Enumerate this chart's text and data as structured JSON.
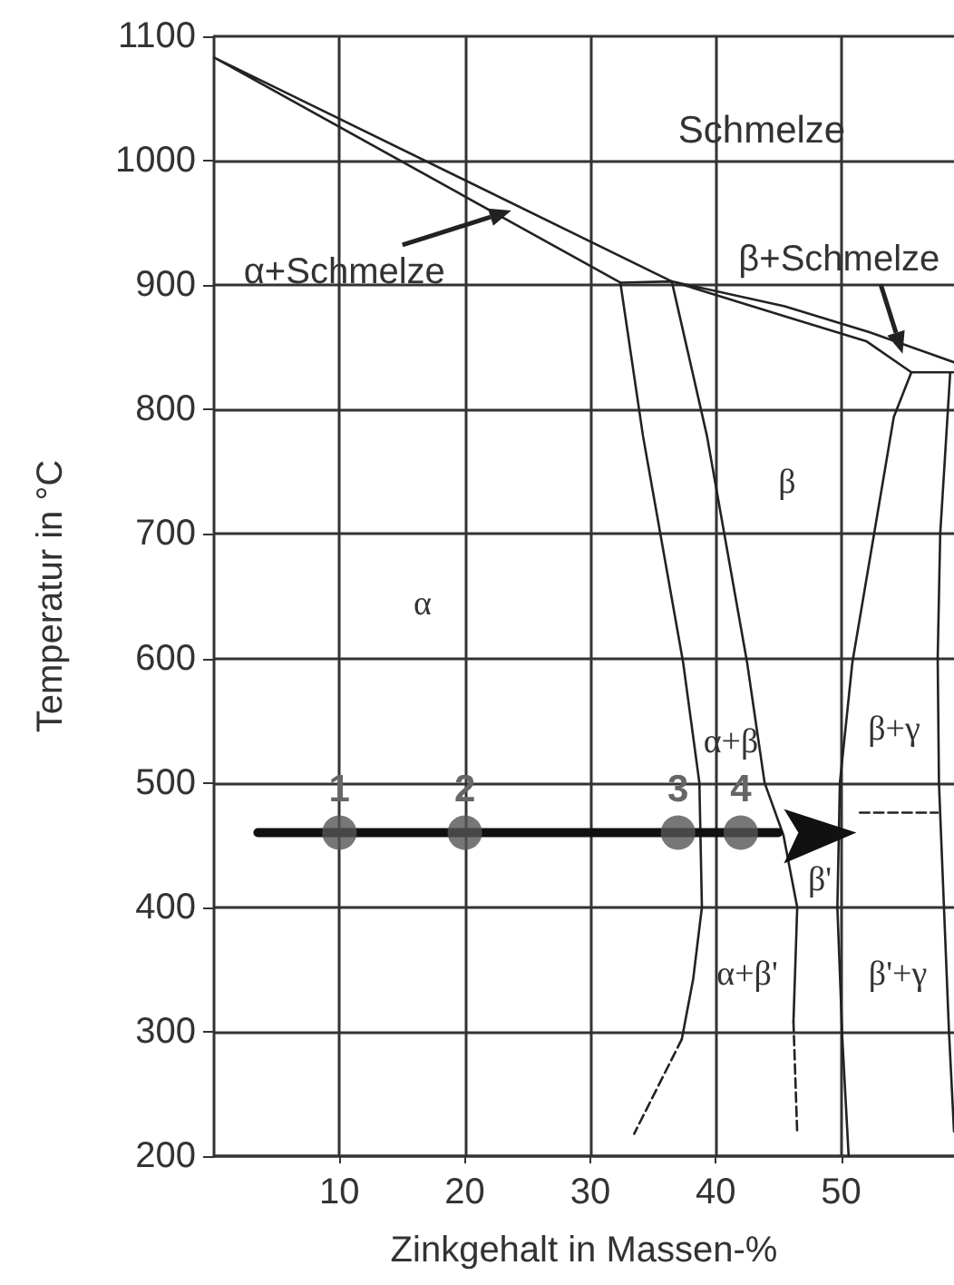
{
  "chart_data": {
    "type": "line",
    "xlabel": "Zinkgehalt in Massen-%",
    "ylabel": "Temperatur in °C",
    "xlim": [
      0,
      59
    ],
    "xticks": [
      10,
      20,
      30,
      40,
      50
    ],
    "ylim": [
      200,
      1100
    ],
    "yticks": [
      200,
      300,
      400,
      500,
      600,
      700,
      800,
      900,
      1000,
      1100
    ],
    "grid": true,
    "marker": "none",
    "line_style": "solid",
    "series": [
      {
        "color": "#222222",
        "x": [
          59,
          52.3,
          45.5,
          36.5,
          0,
          32.4,
          36.5,
          45.5,
          52,
          55.6,
          59
        ],
        "values": [
          838,
          862,
          883,
          903,
          1083,
          902,
          903,
          875,
          855,
          830,
          830
        ]
      },
      {
        "color": "#222222",
        "x": [
          32.4,
          34.2,
          37.4,
          38.7,
          38.9,
          38.2,
          37.3
        ],
        "values": [
          902,
          779,
          597,
          500,
          400,
          342,
          294
        ]
      },
      {
        "color": "#222222",
        "line_style": "dashed",
        "x": [
          37.3,
          33.5
        ],
        "values": [
          294,
          218
        ]
      },
      {
        "color": "#222222",
        "x": [
          36.5,
          39.3,
          42.5,
          43.9,
          45.4,
          46.5,
          46.2
        ],
        "values": [
          903,
          779,
          597,
          500,
          458,
          400,
          308
        ]
      },
      {
        "color": "#222222",
        "line_style": "dashed",
        "x": [
          46.2,
          46.5
        ],
        "values": [
          308,
          218
        ]
      },
      {
        "color": "#222222",
        "x": [
          55.6,
          54.2,
          50.9,
          49.9,
          49.7,
          50.1,
          50.6
        ],
        "values": [
          830,
          794,
          597,
          500,
          400,
          294,
          200
        ]
      },
      {
        "color": "#222222",
        "x": [
          58.7,
          57.9,
          57.7,
          57.8,
          58.2,
          58.6,
          59
        ],
        "values": [
          830,
          700,
          600,
          500,
          400,
          300,
          220
        ]
      },
      {
        "color": "#222222",
        "line_style": "dashed",
        "x": [
          51.5,
          57.7
        ],
        "values": [
          476,
          476
        ]
      },
      {
        "color": "#111111",
        "x": [
          3.5,
          45
        ],
        "values": [
          460,
          460
        ]
      },
      {
        "type": "scatter",
        "marker": "circle",
        "color": "#555555",
        "x": [
          10,
          20,
          37,
          42
        ],
        "values": [
          460,
          460,
          460,
          460
        ]
      }
    ],
    "annotations": [
      {
        "text": "α+Schmelze",
        "x": 23.7,
        "y": 960
      },
      {
        "text": "β+Schmelze",
        "x": 54.9,
        "y": 845
      },
      {
        "text": "1",
        "x": 10,
        "y": 460
      },
      {
        "text": "2",
        "x": 20,
        "y": 460
      },
      {
        "text": "3",
        "x": 37,
        "y": 460
      },
      {
        "text": "4",
        "x": 42,
        "y": 460
      },
      "Schmelze",
      "α",
      "β",
      "β+γ",
      "α+β",
      "β'",
      "α+β'",
      "β'+γ"
    ]
  }
}
